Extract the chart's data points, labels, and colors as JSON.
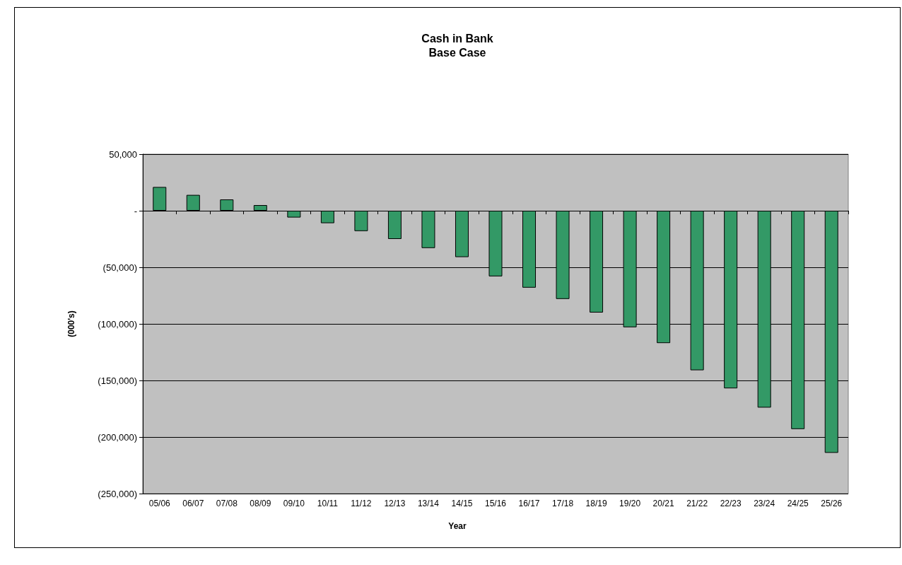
{
  "chart_data": {
    "type": "bar",
    "title": "Cash in Bank\nBase Case",
    "xlabel": "Year",
    "ylabel": "(000's)",
    "categories": [
      "05/06",
      "06/07",
      "07/08",
      "08/09",
      "09/10",
      "10/11",
      "11/12",
      "12/13",
      "13/14",
      "14/15",
      "15/16",
      "16/17",
      "17/18",
      "18/19",
      "19/20",
      "20/21",
      "21/22",
      "22/23",
      "23/24",
      "24/25",
      "25/26"
    ],
    "values": [
      21000,
      14000,
      10000,
      5000,
      -6000,
      -11000,
      -18000,
      -25000,
      -33000,
      -41000,
      -58000,
      -68000,
      -78000,
      -90000,
      -103000,
      -117000,
      -141000,
      -157000,
      -174000,
      -193000,
      -214000
    ],
    "color": "#339966",
    "ylim": [
      -250000,
      50000
    ],
    "yticks": [
      {
        "value": -250000,
        "label": "(250,000)"
      },
      {
        "value": -200000,
        "label": "(200,000)"
      },
      {
        "value": -150000,
        "label": "(150,000)"
      },
      {
        "value": -100000,
        "label": "(100,000)"
      },
      {
        "value": -50000,
        "label": "(50,000)"
      },
      {
        "value": 0,
        "label": "-"
      },
      {
        "value": 50000,
        "label": "50,000"
      }
    ],
    "grid": "y"
  }
}
